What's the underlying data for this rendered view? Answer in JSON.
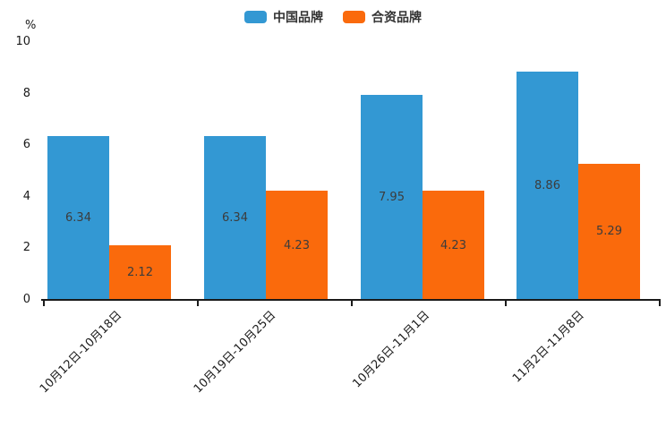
{
  "chart_data": {
    "type": "bar",
    "title": "",
    "ylabel": "%",
    "xlabel": "",
    "ylim": [
      0,
      10
    ],
    "yticks": [
      0,
      2,
      4,
      6,
      8,
      10
    ],
    "grid": false,
    "legend_position": "top-center",
    "axis_color": "#1a1a1a",
    "value_label_color": "#3c3c3c",
    "categories": [
      "10月12日-10月18日",
      "10月19日-10月25日",
      "10月26日-11月1日",
      "11月2日-11月8日"
    ],
    "series": [
      {
        "name": "中国品牌",
        "color": "#3398d3",
        "values": [
          6.34,
          6.34,
          7.95,
          8.86
        ]
      },
      {
        "name": "合资品牌",
        "color": "#fa6a0c",
        "values": [
          2.12,
          4.23,
          4.23,
          5.29
        ]
      }
    ]
  },
  "legend": {
    "items": [
      {
        "label": "中国品牌",
        "color": "#3398d3"
      },
      {
        "label": "合资品牌",
        "color": "#fa6a0c"
      }
    ]
  }
}
